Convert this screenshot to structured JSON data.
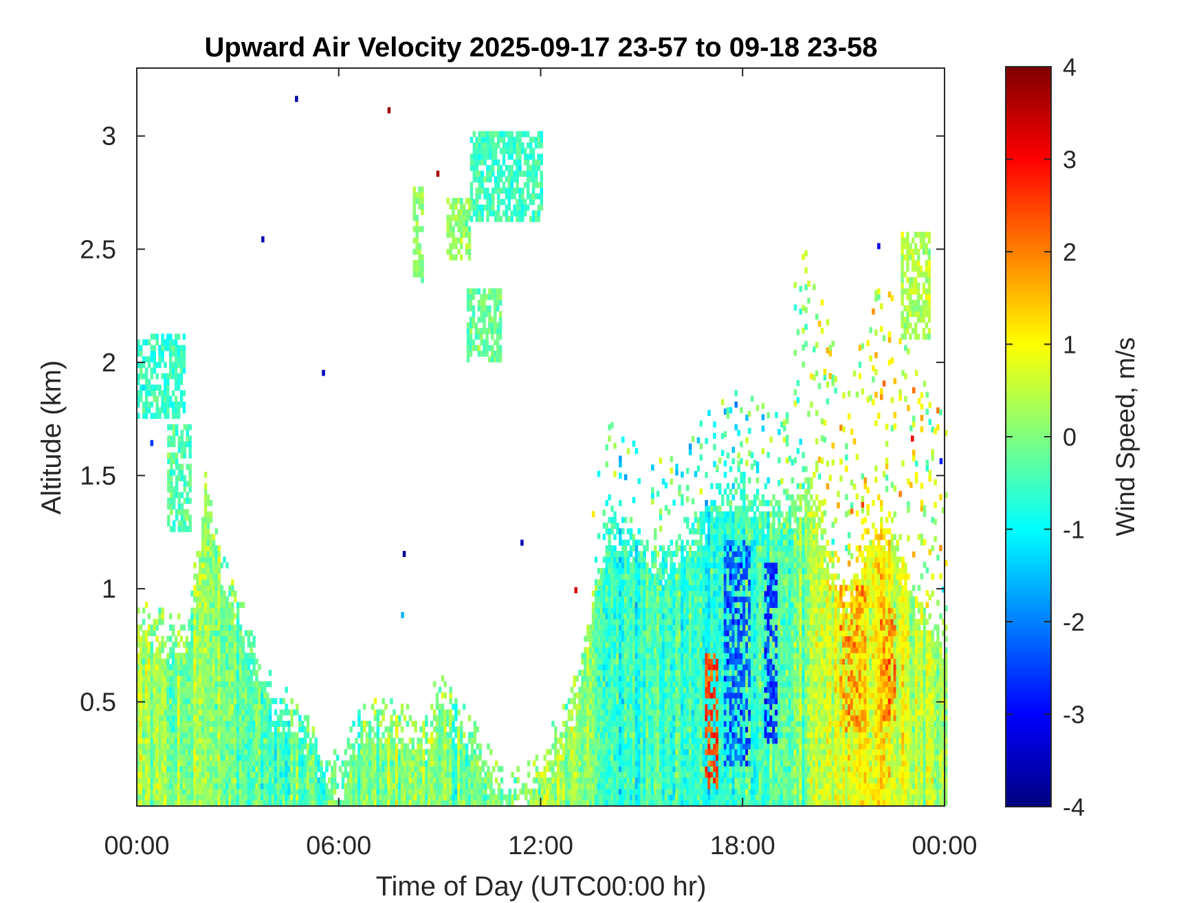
{
  "chart_data": {
    "type": "heatmap",
    "title": "Upward Air Velocity 2025-09-17 23-57 to 09-18 23-58",
    "xlabel": "Time of Day (UTC00:00 hr)",
    "ylabel": "Altitude (km)",
    "x_range_hours": [
      0,
      24
    ],
    "xlim": [
      0,
      24
    ],
    "ylim": [
      0.04,
      3.3
    ],
    "x_ticks": [
      {
        "value": 0,
        "label": "00:00"
      },
      {
        "value": 6,
        "label": "06:00"
      },
      {
        "value": 12,
        "label": "12:00"
      },
      {
        "value": 18,
        "label": "18:00"
      },
      {
        "value": 24,
        "label": "00:00"
      }
    ],
    "y_ticks": [
      {
        "value": 0.5,
        "label": "0.5"
      },
      {
        "value": 1,
        "label": "1"
      },
      {
        "value": 1.5,
        "label": "1.5"
      },
      {
        "value": 2,
        "label": "2"
      },
      {
        "value": 2.5,
        "label": "2.5"
      },
      {
        "value": 3,
        "label": "3"
      }
    ],
    "colorbar": {
      "label": "Wind Speed, m/s",
      "colormap": "jet",
      "clim": [
        -4,
        4
      ],
      "ticks": [
        {
          "value": 4,
          "label": "4"
        },
        {
          "value": 3,
          "label": "3"
        },
        {
          "value": 2,
          "label": "2"
        },
        {
          "value": 1,
          "label": "1"
        },
        {
          "value": 0,
          "label": "0"
        },
        {
          "value": -1,
          "label": "-1"
        },
        {
          "value": -2,
          "label": "-2"
        },
        {
          "value": -3,
          "label": "-3"
        },
        {
          "value": -4,
          "label": "-4"
        }
      ]
    },
    "grid": false,
    "top_height_km": [
      [
        0,
        0.95
      ],
      [
        0.5,
        0.95
      ],
      [
        1,
        0.9
      ],
      [
        1.5,
        0.9
      ],
      [
        2,
        1.6
      ],
      [
        2.5,
        1.2
      ],
      [
        3,
        1.0
      ],
      [
        3.5,
        0.8
      ],
      [
        4,
        0.6
      ],
      [
        4.5,
        0.55
      ],
      [
        5,
        0.5
      ],
      [
        5.5,
        0.35
      ],
      [
        6,
        0.25
      ],
      [
        6.5,
        0.5
      ],
      [
        7,
        0.55
      ],
      [
        7.5,
        0.55
      ],
      [
        8,
        0.5
      ],
      [
        8.5,
        0.45
      ],
      [
        9,
        0.65
      ],
      [
        9.5,
        0.55
      ],
      [
        10,
        0.45
      ],
      [
        10.5,
        0.3
      ],
      [
        11,
        0.2
      ],
      [
        11.5,
        0.22
      ],
      [
        12,
        0.35
      ],
      [
        12.5,
        0.45
      ],
      [
        13,
        0.65
      ],
      [
        13.5,
        1.05
      ],
      [
        14,
        1.45
      ],
      [
        14.5,
        1.35
      ],
      [
        15,
        1.3
      ],
      [
        15.5,
        1.25
      ],
      [
        16,
        1.3
      ],
      [
        16.5,
        1.35
      ],
      [
        17,
        1.5
      ],
      [
        17.5,
        1.55
      ],
      [
        18,
        1.55
      ],
      [
        18.5,
        1.5
      ],
      [
        19,
        1.45
      ],
      [
        19.5,
        1.5
      ],
      [
        20,
        1.6
      ],
      [
        20.5,
        1.25
      ],
      [
        21,
        1.05
      ],
      [
        21.5,
        1.25
      ],
      [
        22,
        1.45
      ],
      [
        22.5,
        1.35
      ],
      [
        23,
        1.1
      ],
      [
        23.5,
        0.95
      ],
      [
        24,
        0.9
      ]
    ],
    "mean_velocity_by_time": [
      [
        0,
        0.2
      ],
      [
        1,
        0.1
      ],
      [
        2,
        0.0
      ],
      [
        3,
        -0.2
      ],
      [
        4,
        -0.4
      ],
      [
        5,
        -0.4
      ],
      [
        6,
        -0.1
      ],
      [
        7,
        0.0
      ],
      [
        8,
        0.2
      ],
      [
        9,
        0.0
      ],
      [
        10,
        -0.2
      ],
      [
        11,
        0.0
      ],
      [
        12,
        0.4
      ],
      [
        13,
        0.3
      ],
      [
        14,
        -0.6
      ],
      [
        15,
        -0.5
      ],
      [
        16,
        -0.4
      ],
      [
        17,
        -0.8
      ],
      [
        18,
        -0.5
      ],
      [
        19,
        -0.3
      ],
      [
        20,
        0.3
      ],
      [
        21,
        0.7
      ],
      [
        22,
        0.9
      ],
      [
        23,
        0.6
      ],
      [
        24,
        0.4
      ]
    ],
    "elevated_layers": [
      {
        "t0": 0,
        "t1": 1.4,
        "z0": 1.75,
        "z1": 2.1,
        "velocity": -0.6
      },
      {
        "t0": 0.9,
        "t1": 1.6,
        "z0": 1.25,
        "z1": 1.7,
        "velocity": -0.3
      },
      {
        "t0": 8.2,
        "t1": 8.5,
        "z0": 2.35,
        "z1": 2.75,
        "velocity": 0.1
      },
      {
        "t0": 9.2,
        "t1": 9.9,
        "z0": 2.45,
        "z1": 2.7,
        "velocity": 0.2
      },
      {
        "t0": 9.9,
        "t1": 12.0,
        "z0": 2.62,
        "z1": 3.0,
        "velocity": -0.5
      },
      {
        "t0": 9.8,
        "t1": 10.8,
        "z0": 2.0,
        "z1": 2.3,
        "velocity": -0.2
      },
      {
        "t0": 22.7,
        "t1": 23.5,
        "z0": 2.1,
        "z1": 2.55,
        "velocity": 0.4
      }
    ],
    "strong_features": [
      {
        "t0": 16.8,
        "t1": 17.2,
        "z0": 0.1,
        "z1": 0.7,
        "velocity": 2.5
      },
      {
        "t0": 17.4,
        "t1": 18.2,
        "z0": 0.2,
        "z1": 1.2,
        "velocity": -2.3
      },
      {
        "t0": 18.6,
        "t1": 19.0,
        "z0": 0.3,
        "z1": 1.1,
        "velocity": -2.6
      },
      {
        "t0": 20.8,
        "t1": 21.6,
        "z0": 0.35,
        "z1": 1.0,
        "velocity": 1.8
      },
      {
        "t0": 22.0,
        "t1": 22.5,
        "z0": 0.4,
        "z1": 0.9,
        "velocity": 2.0
      }
    ],
    "isolated_pixels": [
      {
        "t": 4.7,
        "z": 3.15,
        "velocity": -3.7
      },
      {
        "t": 7.45,
        "z": 3.1,
        "velocity": 3.8
      },
      {
        "t": 8.9,
        "z": 2.82,
        "velocity": 3.7
      },
      {
        "t": 3.7,
        "z": 2.53,
        "velocity": -3.6
      },
      {
        "t": 5.5,
        "z": 1.94,
        "velocity": -3.5
      },
      {
        "t": 0.4,
        "z": 1.63,
        "velocity": -2.6
      },
      {
        "t": 7.9,
        "z": 1.14,
        "velocity": -3.8
      },
      {
        "t": 11.4,
        "z": 1.19,
        "velocity": -3.6
      },
      {
        "t": 13.0,
        "z": 0.98,
        "velocity": 3.3
      },
      {
        "t": 7.85,
        "z": 0.87,
        "velocity": -1.6
      },
      {
        "t": 22.0,
        "z": 2.5,
        "velocity": -3.2
      },
      {
        "t": 23.0,
        "z": 1.65,
        "velocity": 3.1
      },
      {
        "t": 23.85,
        "z": 1.55,
        "velocity": -2.8
      }
    ]
  }
}
